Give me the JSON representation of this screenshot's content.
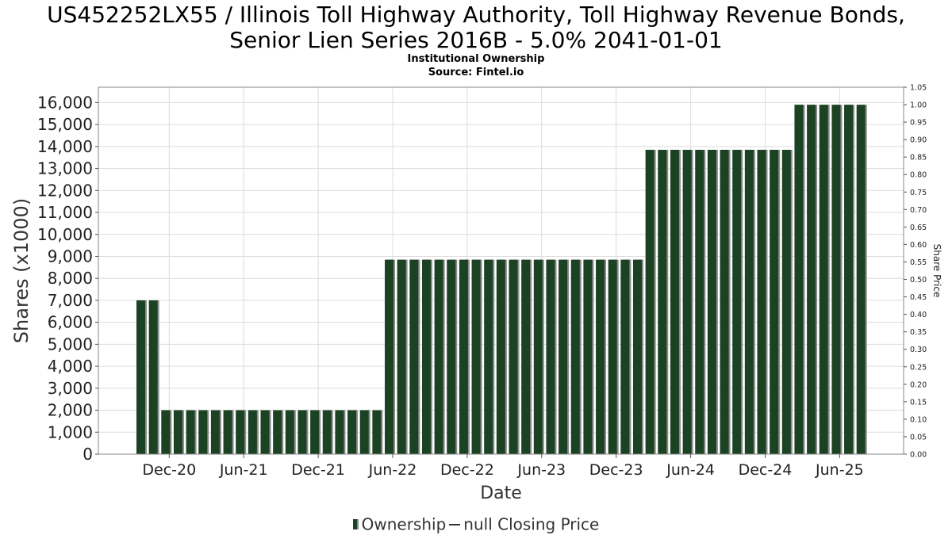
{
  "title_line1": "US452252LX55 / Illinois Toll Highway Authority, Toll Highway Revenue Bonds,",
  "title_line2": "Senior Lien Series 2016B - 5.0% 2041-01-01",
  "subtitle": "Institutional Ownership",
  "source": "Source: Fintel.io",
  "legend": {
    "ownership": "Ownership",
    "price": "null Closing Price"
  },
  "colors": {
    "bar": "#1b4223",
    "bar_shadow": "#8a8a8a",
    "grid": "#dcdcdc"
  },
  "chart_data": {
    "type": "bar",
    "xlabel": "Date",
    "ylabel": "Shares (x1000)",
    "y2label": "Share Price",
    "ylim": [
      0,
      16700
    ],
    "y2lim": [
      0,
      1.05
    ],
    "yticks": [
      0,
      1000,
      2000,
      3000,
      4000,
      5000,
      6000,
      7000,
      8000,
      9000,
      10000,
      11000,
      12000,
      13000,
      14000,
      15000,
      16000
    ],
    "ytick_labels": [
      "0",
      "1,000",
      "2,000",
      "3,000",
      "4,000",
      "5,000",
      "6,000",
      "7,000",
      "8,000",
      "9,000",
      "10,000",
      "11,000",
      "12,000",
      "13,000",
      "14,000",
      "15,000",
      "16,000"
    ],
    "y2ticks": [
      0,
      0.05,
      0.1,
      0.15,
      0.2,
      0.25,
      0.3,
      0.35,
      0.4,
      0.45,
      0.5,
      0.55,
      0.6,
      0.65,
      0.7,
      0.75,
      0.8,
      0.85,
      0.9,
      0.95,
      1.0,
      1.05
    ],
    "y2tick_labels": [
      "0.00",
      "0.05",
      "0.10",
      "0.15",
      "0.20",
      "0.25",
      "0.30",
      "0.35",
      "0.40",
      "0.45",
      "0.50",
      "0.55",
      "0.60",
      "0.65",
      "0.70",
      "0.75",
      "0.80",
      "0.85",
      "0.90",
      "0.95",
      "1.00",
      "1.05"
    ],
    "xticks": [
      "Dec-20",
      "Jun-21",
      "Dec-21",
      "Jun-22",
      "Dec-22",
      "Jun-23",
      "Dec-23",
      "Jun-24",
      "Dec-24",
      "Jun-25"
    ],
    "grid": true,
    "legend_position": "bottom",
    "series": [
      {
        "name": "Ownership",
        "values": [
          7000,
          7000,
          2000,
          2000,
          2000,
          2000,
          2000,
          2000,
          2000,
          2000,
          2000,
          2000,
          2000,
          2000,
          2000,
          2000,
          2000,
          2000,
          2000,
          2000,
          8850,
          8850,
          8850,
          8850,
          8850,
          8850,
          8850,
          8850,
          8850,
          8850,
          8850,
          8850,
          8850,
          8850,
          8850,
          8850,
          8850,
          8850,
          8850,
          8850,
          8850,
          13850,
          13850,
          13850,
          13850,
          13850,
          13850,
          13850,
          13850,
          13850,
          13850,
          13850,
          13850,
          15900,
          15900,
          15900,
          15900,
          15900,
          15900
        ]
      }
    ]
  }
}
